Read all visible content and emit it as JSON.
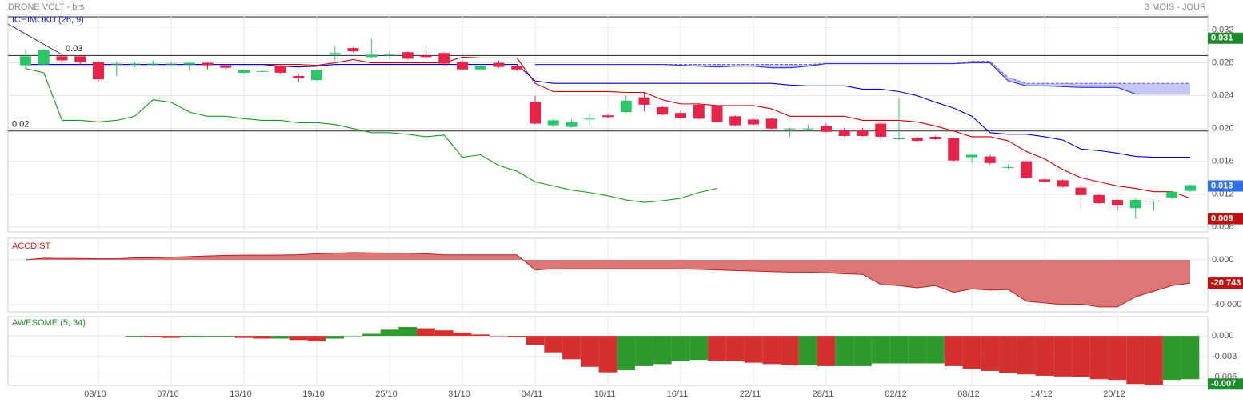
{
  "chart_data": [
    {
      "type": "candlestick",
      "title": "DRONE VOLT - brs",
      "subtitle": "3 MOIS - JOUR",
      "indicator": "ICHIMOKU (26, 9)",
      "categories": [
        null,
        null,
        null,
        null,
        "03/10",
        null,
        null,
        null,
        "07/10",
        null,
        null,
        null,
        "13/10",
        null,
        null,
        null,
        "19/10",
        null,
        null,
        null,
        "25/10",
        null,
        null,
        null,
        "31/10",
        null,
        null,
        null,
        "04/11",
        null,
        null,
        null,
        "10/11",
        null,
        null,
        null,
        "16/11",
        null,
        null,
        null,
        "22/11",
        null,
        null,
        null,
        "28/11",
        null,
        null,
        null,
        "02/12",
        null,
        null,
        null,
        "08/12",
        null,
        null,
        null,
        "14/12",
        null,
        null,
        null,
        "20/12",
        null,
        null,
        null,
        null
      ],
      "open": [
        0.0277,
        0.0278,
        0.0288,
        0.0288,
        0.0281,
        0.0279,
        0.0279,
        0.0279,
        0.0279,
        0.0278,
        0.028,
        0.0277,
        0.0268,
        0.027,
        0.0276,
        0.0264,
        0.0259,
        0.029,
        0.0298,
        0.0287,
        0.029,
        0.0293,
        0.0289,
        0.0292,
        0.0281,
        0.0272,
        0.028,
        0.0276,
        0.0232,
        0.0204,
        0.0202,
        0.0212,
        0.0216,
        0.022,
        0.0238,
        0.0226,
        0.0219,
        0.0229,
        0.0227,
        0.0215,
        0.0211,
        0.0212,
        0.02,
        0.02,
        0.0203,
        0.0198,
        0.0198,
        0.0206,
        0.0187,
        0.0189,
        0.019,
        0.0188,
        0.0165,
        0.0166,
        0.0153,
        0.016,
        0.0138,
        0.0137,
        0.0128,
        0.0119,
        0.0113,
        0.0103,
        0.0112,
        0.0116,
        0.0124
      ],
      "high": [
        0.0296,
        0.0297,
        0.0291,
        0.0289,
        0.0282,
        0.0282,
        0.0281,
        0.0283,
        0.0281,
        0.0281,
        0.0281,
        0.0278,
        0.0272,
        0.0272,
        0.0278,
        0.0267,
        0.0272,
        0.03,
        0.0299,
        0.0309,
        0.0294,
        0.0294,
        0.0295,
        0.0293,
        0.0284,
        0.0278,
        0.0283,
        0.0278,
        0.024,
        0.0212,
        0.0211,
        0.0218,
        0.0218,
        0.024,
        0.0244,
        0.0228,
        0.0222,
        0.0231,
        0.0228,
        0.0216,
        0.0212,
        0.0213,
        0.0201,
        0.0205,
        0.0206,
        0.0201,
        0.0201,
        0.0208,
        0.0237,
        0.019,
        0.0191,
        0.0189,
        0.0169,
        0.0168,
        0.0156,
        0.0161,
        0.0139,
        0.0138,
        0.0131,
        0.012,
        0.0114,
        0.0115,
        0.0113,
        0.0124,
        0.0132
      ],
      "low": [
        0.0271,
        0.0277,
        0.0279,
        0.0278,
        0.0257,
        0.0264,
        0.0275,
        0.0276,
        0.0276,
        0.027,
        0.0272,
        0.0272,
        0.0266,
        0.0268,
        0.0267,
        0.0256,
        0.0258,
        0.0283,
        0.0293,
        0.0286,
        0.0286,
        0.0284,
        0.0286,
        0.0277,
        0.0271,
        0.0271,
        0.0274,
        0.027,
        0.0205,
        0.0202,
        0.0201,
        0.0204,
        0.0213,
        0.0219,
        0.0221,
        0.0216,
        0.0212,
        0.0211,
        0.0207,
        0.0203,
        0.0204,
        0.0199,
        0.019,
        0.0198,
        0.0195,
        0.019,
        0.019,
        0.0187,
        0.0186,
        0.0184,
        0.0186,
        0.016,
        0.0158,
        0.0156,
        0.0151,
        0.0139,
        0.0134,
        0.0128,
        0.0103,
        0.0108,
        0.01,
        0.009,
        0.01,
        0.0114,
        0.0123
      ],
      "close": [
        0.0288,
        0.0296,
        0.0283,
        0.0281,
        0.026,
        0.0279,
        0.0279,
        0.0279,
        0.0279,
        0.028,
        0.0277,
        0.0274,
        0.0271,
        0.027,
        0.0268,
        0.0261,
        0.0271,
        0.0292,
        0.0294,
        0.029,
        0.029,
        0.0285,
        0.0287,
        0.0279,
        0.0272,
        0.0276,
        0.0275,
        0.0272,
        0.0206,
        0.021,
        0.0208,
        0.0212,
        0.0214,
        0.0234,
        0.0229,
        0.0217,
        0.0213,
        0.0212,
        0.0208,
        0.0204,
        0.0205,
        0.02,
        0.02,
        0.02,
        0.0196,
        0.0191,
        0.0191,
        0.019,
        0.0188,
        0.0185,
        0.0187,
        0.0161,
        0.0168,
        0.0158,
        0.0153,
        0.014,
        0.0135,
        0.0129,
        0.0119,
        0.0109,
        0.0106,
        0.0113,
        0.0112,
        0.0123,
        0.0131
      ],
      "up_color": "#2bc66a",
      "down_color": "#e8234a",
      "series": [
        {
          "color": "#cc0000",
          "values": [
            0.0278,
            0.0278,
            0.0278,
            0.0278,
            0.0278,
            0.0278,
            0.0278,
            0.0278,
            0.0278,
            0.0278,
            0.0278,
            0.0278,
            0.0278,
            0.0278,
            0.0278,
            0.0278,
            0.0277,
            0.028,
            0.0284,
            0.028,
            0.028,
            0.028,
            0.028,
            0.028,
            0.0287,
            0.0286,
            0.0286,
            0.0286,
            0.0255,
            0.0245,
            0.0245,
            0.0245,
            0.0245,
            0.0244,
            0.0244,
            0.0235,
            0.023,
            0.023,
            0.0228,
            0.0228,
            0.0228,
            0.0224,
            0.0215,
            0.0215,
            0.0215,
            0.0215,
            0.021,
            0.021,
            0.021,
            0.0208,
            0.0203,
            0.0197,
            0.019,
            0.019,
            0.0185,
            0.0172,
            0.0163,
            0.015,
            0.014,
            0.0135,
            0.013,
            0.0127,
            0.0123,
            0.0123,
            0.0115
          ]
        },
        {
          "color": "#0000cc",
          "values": [
            0.0278,
            0.0278,
            0.0278,
            0.0278,
            0.0278,
            0.0278,
            0.0278,
            0.0278,
            0.0278,
            0.0278,
            0.0278,
            0.0278,
            0.0278,
            0.0278,
            0.0276,
            0.0275,
            0.0276,
            0.0278,
            0.0278,
            0.0278,
            0.0278,
            0.0278,
            0.0278,
            0.0278,
            0.0278,
            0.0278,
            0.0278,
            0.0278,
            0.0258,
            0.0255,
            0.0255,
            0.0255,
            0.0255,
            0.0255,
            0.0255,
            0.0255,
            0.0255,
            0.0255,
            0.0255,
            0.0255,
            0.0255,
            0.0255,
            0.0253,
            0.0252,
            0.0252,
            0.0252,
            0.0248,
            0.0248,
            0.0245,
            0.024,
            0.0232,
            0.0225,
            0.0215,
            0.0195,
            0.0193,
            0.0193,
            0.019,
            0.0186,
            0.0175,
            0.0173,
            0.017,
            0.0166,
            0.0165,
            0.0165,
            0.0165
          ]
        },
        {
          "color": "#1a9a1a",
          "values": [
            0.0273,
            0.0268,
            0.021,
            0.021,
            0.0208,
            0.021,
            0.0215,
            0.0235,
            0.0232,
            0.022,
            0.0215,
            0.0215,
            0.0212,
            0.021,
            0.021,
            0.0207,
            0.0207,
            0.0205,
            0.02,
            0.0195,
            0.0195,
            0.0193,
            0.019,
            0.0192,
            0.0165,
            0.0168,
            0.0155,
            0.0148,
            0.0135,
            0.013,
            0.0125,
            0.0122,
            0.0118,
            0.0113,
            0.011,
            0.0112,
            0.0115,
            0.0122,
            0.0127,
            null,
            null,
            null,
            null,
            null,
            null,
            null,
            null,
            null,
            null,
            null,
            null,
            null,
            null,
            null,
            null,
            null,
            null,
            null,
            null,
            null,
            null,
            null,
            null,
            null,
            null
          ]
        },
        {
          "color": "#6666dd",
          "dashed": true,
          "values": [
            null,
            null,
            null,
            null,
            null,
            null,
            null,
            null,
            null,
            null,
            null,
            null,
            null,
            null,
            null,
            null,
            null,
            null,
            null,
            null,
            null,
            null,
            null,
            null,
            null,
            null,
            null,
            null,
            0.0278,
            0.0278,
            0.0278,
            0.0278,
            0.0278,
            0.0278,
            0.0278,
            0.0278,
            0.0278,
            0.0278,
            0.0278,
            0.0278,
            0.0278,
            0.0278,
            0.0278,
            0.0278,
            0.0279,
            0.0279,
            0.0279,
            0.0279,
            0.0279,
            0.0279,
            0.0279,
            0.0279,
            0.0282,
            0.0282,
            0.0262,
            0.0255,
            0.0255,
            0.0255,
            0.0255,
            0.0255,
            0.0255,
            0.0255,
            0.0255,
            0.0255,
            0.0255
          ]
        },
        {
          "color": "#3333cc",
          "values": [
            null,
            null,
            null,
            null,
            null,
            null,
            null,
            null,
            null,
            null,
            null,
            null,
            null,
            null,
            null,
            null,
            null,
            null,
            null,
            null,
            null,
            null,
            null,
            null,
            null,
            null,
            null,
            null,
            0.0278,
            0.0278,
            0.0278,
            0.0278,
            0.0278,
            0.0278,
            0.0278,
            0.0278,
            0.0277,
            0.0276,
            0.0275,
            0.0276,
            0.0276,
            0.0274,
            0.0274,
            0.0276,
            0.0279,
            0.0279,
            0.0279,
            0.0279,
            0.0279,
            0.0279,
            0.0279,
            0.0279,
            0.028,
            0.028,
            0.0258,
            0.0252,
            0.0252,
            0.0251,
            0.025,
            0.025,
            0.025,
            0.0242,
            0.0242,
            0.0242,
            0.0242
          ]
        }
      ],
      "cloud_color": "#c6c6f4",
      "ylim": [
        0.0074,
        0.0339
      ],
      "yticks": [
        0.008,
        0.012,
        0.016,
        {
          "value": 0.02,
          "label": "0.020"
        },
        0.024,
        0.028,
        0.032
      ],
      "levels": [
        {
          "value": 0.0289,
          "label": "0.03"
        },
        {
          "value": 0.0197,
          "label": "0.02"
        }
      ],
      "tags": [
        {
          "value": 0.031,
          "color": "#1e8c2c"
        },
        {
          "value": 0.013,
          "color": "#2f6fe8"
        },
        {
          "value": 0.009,
          "color": "#c01010"
        }
      ]
    },
    {
      "type": "area",
      "title": "ACCDIST",
      "color": "#b22222",
      "fill": "#dd7676",
      "values": [
        0,
        1500,
        1300,
        1300,
        1000,
        1000,
        1800,
        1800,
        2400,
        3000,
        3500,
        4000,
        4200,
        4200,
        4300,
        4600,
        5500,
        6000,
        6500,
        6300,
        6000,
        6000,
        5500,
        4500,
        4500,
        4500,
        4500,
        4500,
        -9000,
        -8000,
        -8000,
        -8000,
        -8000,
        -8000,
        -8000,
        -8000,
        -8000,
        -8500,
        -9000,
        -9500,
        -10000,
        -10500,
        -11000,
        -11000,
        -11500,
        -12500,
        -13000,
        -22000,
        -23000,
        -25000,
        -23000,
        -29000,
        -26000,
        -27000,
        -26500,
        -37000,
        -38500,
        -40000,
        -39500,
        -42000,
        -42000,
        -33000,
        -28000,
        -23000,
        -20743
      ],
      "ylim": [
        -46400,
        19300
      ],
      "yticks": [
        {
          "value": -40000,
          "label": "-40 000"
        },
        {
          "value": 0,
          "label": "0.000"
        }
      ],
      "tag": {
        "value": -20743,
        "label": "-20 743",
        "color": "#c01010"
      }
    },
    {
      "type": "bar",
      "title": "AWESOME (5, 34)",
      "up_color": "#2e9a2e",
      "down_color": "#d43030",
      "values": [
        null,
        null,
        null,
        null,
        null,
        null,
        -0.0001,
        -0.0002,
        -0.0003,
        -0.0002,
        -0.0001,
        -0.0001,
        -0.0003,
        -0.0004,
        -0.0004,
        -0.0006,
        -0.0008,
        -0.0004,
        0,
        0.0003,
        0.0009,
        0.0013,
        0.0011,
        0.0008,
        0.0005,
        0.0002,
        0,
        -0.0002,
        -0.0013,
        -0.0024,
        -0.0034,
        -0.0045,
        -0.0053,
        -0.005,
        -0.0044,
        -0.0041,
        -0.0037,
        -0.0035,
        -0.0036,
        -0.0037,
        -0.0039,
        -0.0041,
        -0.0043,
        -0.0043,
        -0.0044,
        -0.0044,
        -0.0044,
        -0.004,
        -0.004,
        -0.004,
        -0.004,
        -0.0044,
        -0.0048,
        -0.0051,
        -0.0054,
        -0.0056,
        -0.0058,
        -0.0059,
        -0.006,
        -0.0063,
        -0.0064,
        -0.007,
        -0.0071,
        -0.0064,
        -0.0063
      ],
      "ylim": [
        -0.0072,
        0.0028
      ],
      "yticks": [
        -0.006,
        -0.003,
        {
          "value": 0,
          "label": "0.000"
        }
      ],
      "tag": {
        "value": -0.007,
        "color": "#1e8c2c"
      }
    }
  ]
}
